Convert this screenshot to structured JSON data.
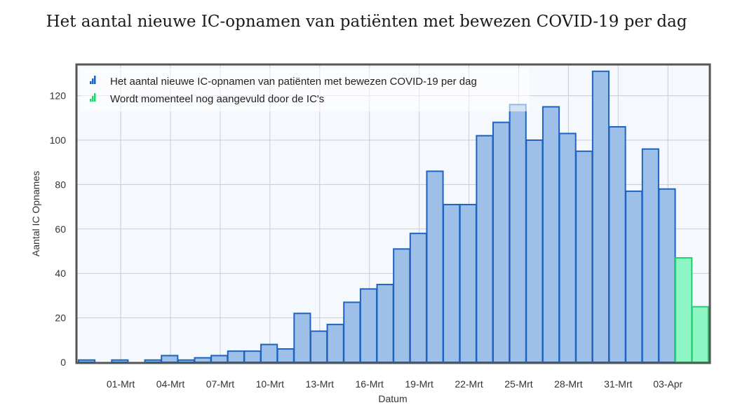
{
  "title": "Het aantal nieuwe IC-opnamen van patiënten met bewezen COVID-19 per dag",
  "colors": {
    "bar_fill": "#9dbfe8",
    "bar_stroke": "#1d64c2",
    "pending_fill": "#8ef5c4",
    "pending_stroke": "#20d46f",
    "plot_bg": "#f5f8fd",
    "grid": "#c9ccd3",
    "frame": "#555555"
  },
  "chart_data": {
    "type": "bar",
    "title": "Het aantal nieuwe IC-opnamen van patiënten met bewezen COVID-19 per dag",
    "xlabel": "Datum",
    "ylabel": "Aantal IC Opnames",
    "ylim": [
      0,
      133
    ],
    "yticks": [
      0,
      20,
      40,
      60,
      80,
      100,
      120
    ],
    "grid": true,
    "legend_position": "top-left",
    "x_tick_labels": [
      "01-Mrt",
      "04-Mrt",
      "07-Mrt",
      "10-Mrt",
      "13-Mrt",
      "16-Mrt",
      "19-Mrt",
      "22-Mrt",
      "25-Mrt",
      "28-Mrt",
      "31-Mrt",
      "03-Apr"
    ],
    "series": [
      {
        "name": "Het aantal nieuwe IC-opnamen van patiënten met bewezen COVID-19 per dag",
        "icon": "bar-chart-icon",
        "color": "#1d64c2",
        "values": [
          1,
          0,
          1,
          0,
          1,
          3,
          1,
          2,
          3,
          5,
          5,
          8,
          6,
          22,
          14,
          17,
          27,
          33,
          35,
          51,
          58,
          86,
          71,
          71,
          102,
          108,
          116,
          100,
          115,
          103,
          95,
          131,
          106,
          77,
          96,
          78
        ]
      },
      {
        "name": "Wordt momenteel nog aangevuld door de IC's",
        "icon": "bar-chart-icon",
        "color": "#20d46f",
        "values": [
          47,
          25
        ]
      }
    ]
  }
}
